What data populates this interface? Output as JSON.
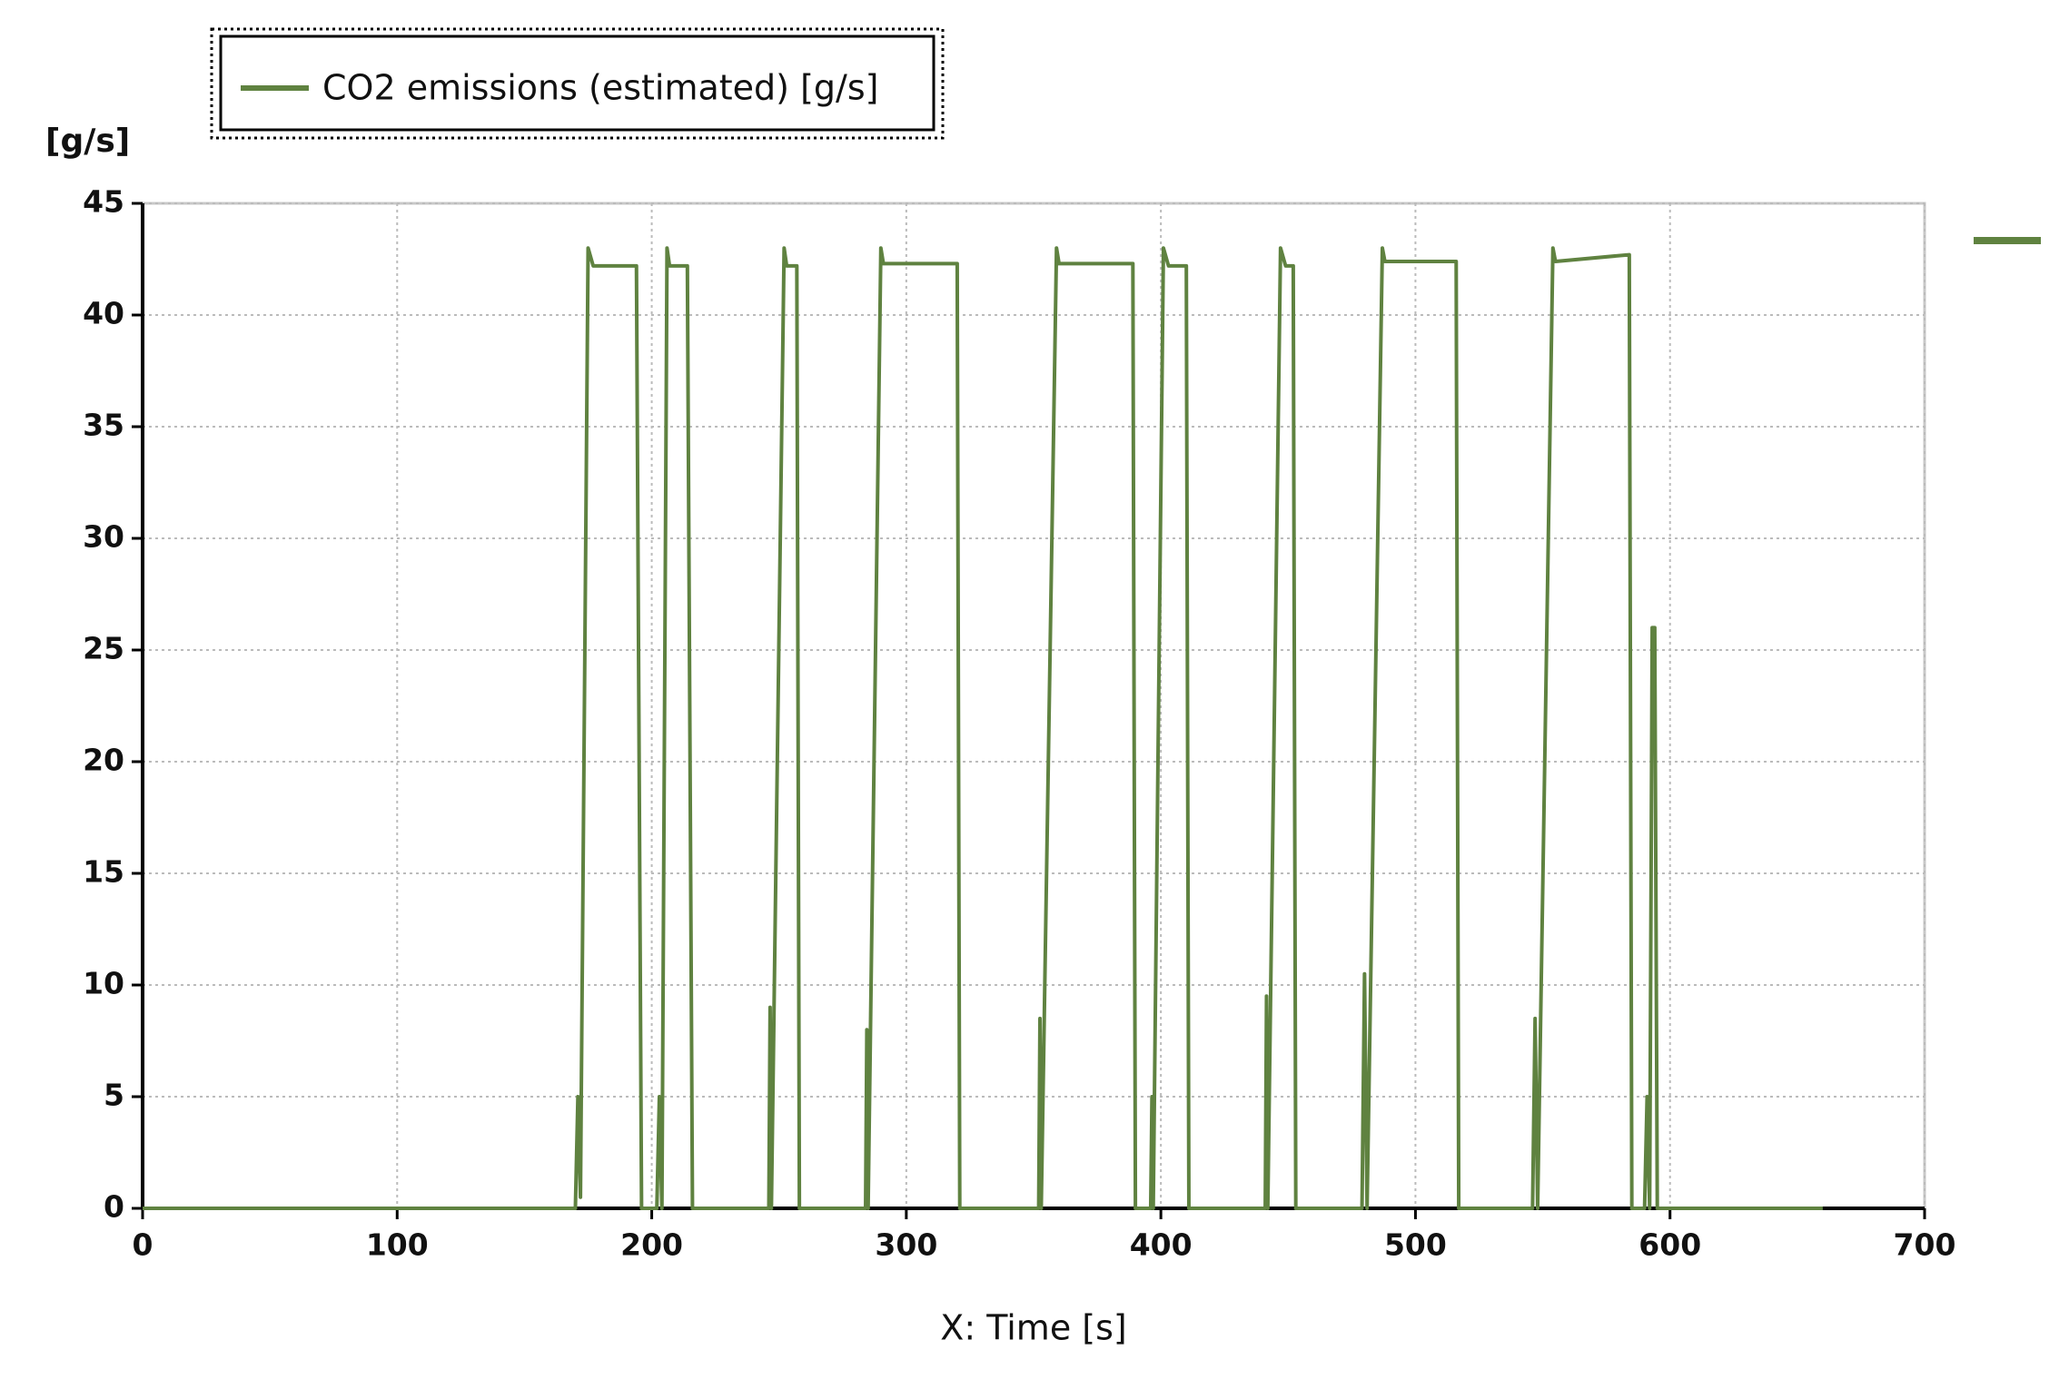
{
  "chart_data": {
    "type": "line",
    "ylabel": "[g/s]",
    "xlabel": "X: Time [s]",
    "xlim": [
      0,
      700
    ],
    "xticks": [
      0,
      100,
      200,
      300,
      400,
      500,
      600,
      700
    ],
    "ylim": [
      0,
      45
    ],
    "yticks": [
      0,
      5,
      10,
      15,
      20,
      25,
      30,
      35,
      40,
      45
    ],
    "grid": true,
    "x": [
      0,
      170,
      171,
      172,
      175,
      177,
      194,
      196,
      202,
      203,
      204,
      206,
      207,
      214,
      216,
      246,
      246.5,
      247,
      252,
      253,
      257,
      258,
      284,
      284.5,
      285,
      290,
      291,
      320,
      321,
      352,
      352.5,
      353,
      359,
      360,
      389,
      390,
      396,
      396.5,
      397,
      401,
      403,
      410,
      411,
      441,
      441.5,
      442,
      447,
      449,
      452,
      453,
      479,
      480,
      481,
      487,
      488,
      516,
      517,
      546,
      547,
      548,
      554,
      555,
      584,
      585,
      590,
      591,
      592,
      593,
      594,
      595,
      660
    ],
    "series": [
      {
        "name": "CO2 emissions (estimated) [g/s]",
        "color": "#5f8240",
        "values": [
          0,
          0,
          5,
          0.5,
          43,
          42.2,
          42.2,
          0,
          0,
          5,
          0,
          43,
          42.2,
          42.2,
          0,
          0,
          9,
          0,
          43,
          42.2,
          42.2,
          0,
          0,
          8,
          0,
          43,
          42.3,
          42.3,
          0,
          0,
          8.5,
          0,
          43,
          42.3,
          42.3,
          0,
          0,
          5,
          0,
          43,
          42.2,
          42.2,
          0,
          0,
          9.5,
          0,
          43,
          42.2,
          42.2,
          0,
          0,
          10.5,
          0,
          43,
          42.4,
          42.4,
          0,
          0,
          8.5,
          0,
          43,
          42.4,
          42.7,
          0,
          0,
          5,
          0,
          26,
          26,
          0,
          0
        ]
      }
    ]
  }
}
